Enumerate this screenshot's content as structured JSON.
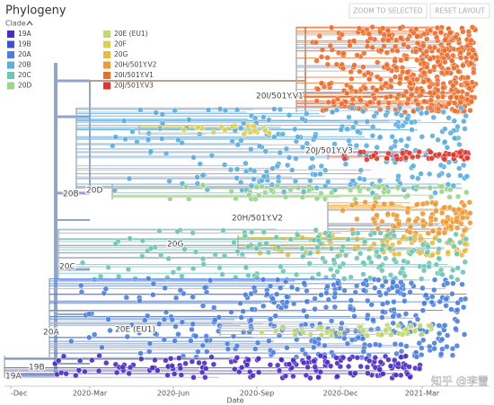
{
  "header": {
    "title": "Phylogeny",
    "legend_title": "Clade",
    "buttons": [
      "ZOOM TO SELECTED",
      "RESET LAYOUT"
    ]
  },
  "legend": [
    {
      "label": "19A",
      "color": "#4b2bc8"
    },
    {
      "label": "19B",
      "color": "#3f4fd6"
    },
    {
      "label": "20A",
      "color": "#4a7fe0"
    },
    {
      "label": "20B",
      "color": "#5aaee0"
    },
    {
      "label": "20C",
      "color": "#6cc6b4"
    },
    {
      "label": "20D",
      "color": "#9bd48b"
    },
    {
      "label": "20E (EU1)",
      "color": "#c0d96b"
    },
    {
      "label": "20F",
      "color": "#dfd14f"
    },
    {
      "label": "20G",
      "color": "#e9bb3f"
    },
    {
      "label": "20H/501Y.V2",
      "color": "#f09a35"
    },
    {
      "label": "20I/501Y.V1",
      "color": "#ef6c2a"
    },
    {
      "label": "20J/501Y.V3",
      "color": "#e0352b"
    }
  ],
  "tree_labels": [
    "20I/501Y.V1",
    "20J/501Y.V3",
    "20B",
    "20D",
    "20H/501Y.V2",
    "20G",
    "20C",
    "20A",
    "20E (EU1)",
    "19B",
    "19A"
  ],
  "x_axis": {
    "ticks": [
      "-Dec",
      "2020-Mar",
      "2020-Jun",
      "2020-Sep",
      "2020-Dec",
      "2021-Mar"
    ],
    "label": "Date"
  },
  "watermark": "知乎 @李雷"
}
